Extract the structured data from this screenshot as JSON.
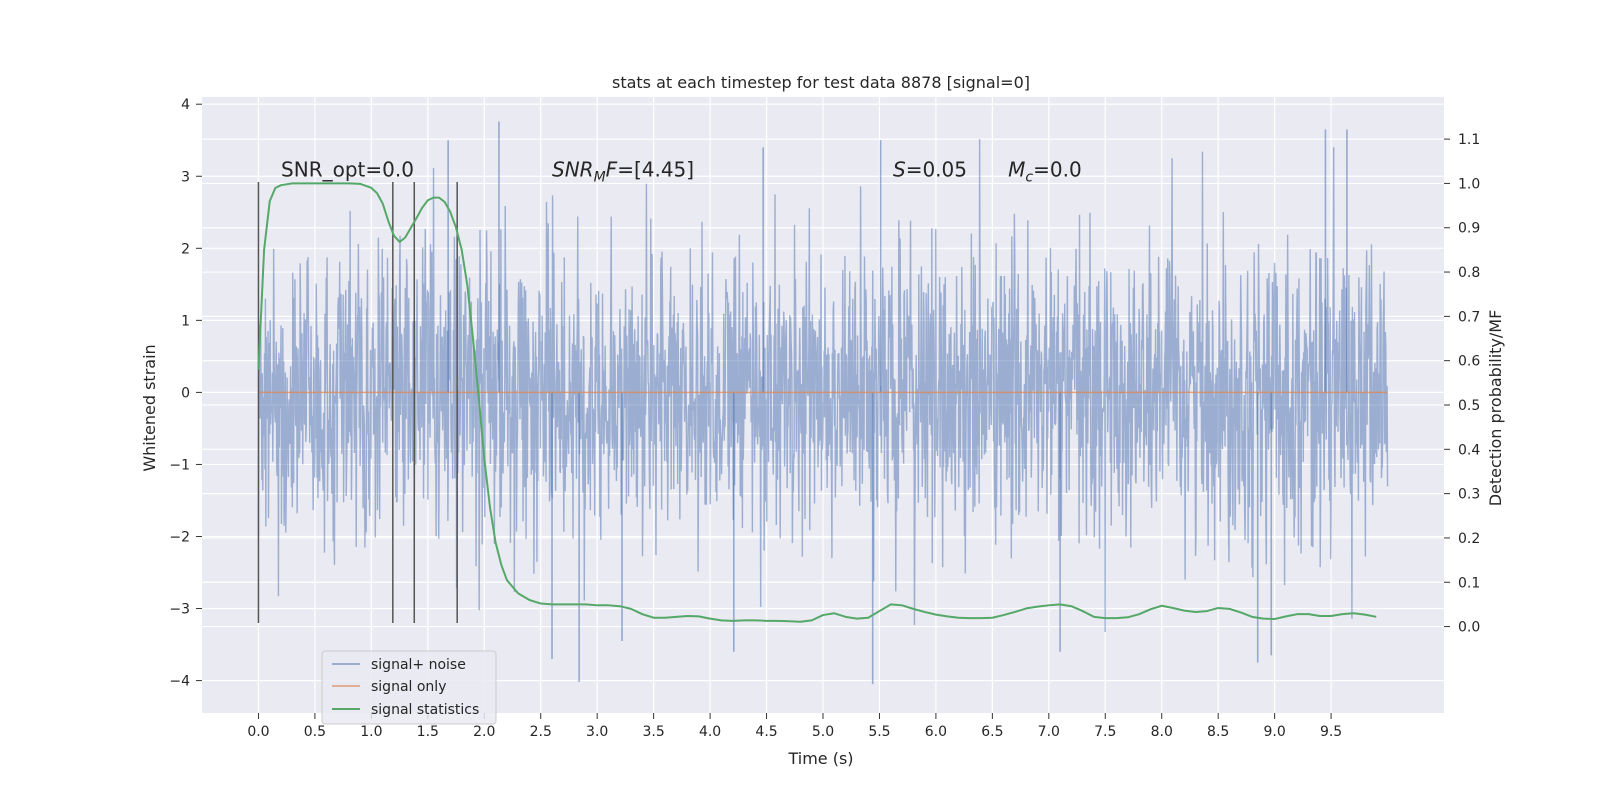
{
  "chart_data": {
    "type": "line",
    "title": "stats at each timestep for test data 8878 [signal=0]",
    "xlabel": "Time (s)",
    "ylabel": "Whitened strain",
    "y2label": "Detection probability/MF",
    "xlim": [
      -0.5,
      10.5
    ],
    "ylim": [
      -4.45,
      4.1
    ],
    "y2lim": [
      -0.195,
      1.195
    ],
    "x_ticks": [
      0.0,
      0.5,
      1.0,
      1.5,
      2.0,
      2.5,
      3.0,
      3.5,
      4.0,
      4.5,
      5.0,
      5.5,
      6.0,
      6.5,
      7.0,
      7.5,
      8.0,
      8.5,
      9.0,
      9.5
    ],
    "x_tick_labels": [
      "0.0",
      "0.5",
      "1.0",
      "1.5",
      "2.0",
      "2.5",
      "3.0",
      "3.5",
      "4.0",
      "4.5",
      "5.0",
      "5.5",
      "6.0",
      "6.5",
      "7.0",
      "7.5",
      "8.0",
      "8.5",
      "9.0",
      "9.5"
    ],
    "y_ticks": [
      -4,
      -3,
      -2,
      -1,
      0,
      1,
      2,
      3,
      4
    ],
    "y_tick_labels": [
      "−4",
      "−3",
      "−2",
      "−1",
      "0",
      "1",
      "2",
      "3",
      "4"
    ],
    "y2_ticks": [
      0.0,
      0.1,
      0.2,
      0.3,
      0.4,
      0.5,
      0.6,
      0.7,
      0.8,
      0.9,
      1.0,
      1.1
    ],
    "y2_tick_labels": [
      "0.0",
      "0.1",
      "0.2",
      "0.3",
      "0.4",
      "0.5",
      "0.6",
      "0.7",
      "0.8",
      "0.9",
      "1.0",
      "1.1"
    ],
    "grid": true,
    "legend": "lower-left",
    "noise": {
      "x_range": [
        0.0,
        10.0
      ],
      "typical_amplitude": 1.0,
      "min": -4.02,
      "max": 3.76,
      "peaks": [
        {
          "x": 2.13,
          "y": 3.76
        },
        {
          "x": 1.68,
          "y": 3.5
        },
        {
          "x": 5.51,
          "y": 3.5
        },
        {
          "x": 9.45,
          "y": 3.65
        },
        {
          "x": 9.64,
          "y": 3.65
        },
        {
          "x": 4.47,
          "y": 3.4
        },
        {
          "x": 2.84,
          "y": -4.02
        },
        {
          "x": 5.44,
          "y": -4.05
        },
        {
          "x": 2.6,
          "y": -3.7
        },
        {
          "x": 8.85,
          "y": -3.75
        },
        {
          "x": 8.97,
          "y": -3.65
        },
        {
          "x": 4.21,
          "y": -3.6
        },
        {
          "x": 3.22,
          "y": -3.45
        },
        {
          "x": 7.1,
          "y": -3.6
        }
      ]
    },
    "vlines": [
      0.0,
      1.19,
      1.38,
      1.76
    ],
    "vline_range": [
      -3.2,
      2.92
    ],
    "series": [
      {
        "name": "signal+ noise",
        "color": "#4c72b0",
        "axis": "left",
        "style": "dense-noise"
      },
      {
        "name": "signal only",
        "color": "#dd8452",
        "axis": "left",
        "x": [
          0.0,
          10.0
        ],
        "y": [
          0.0,
          0.0
        ]
      },
      {
        "name": "signal statistics",
        "color": "#55a868",
        "axis": "right",
        "x": [
          0.0,
          0.05,
          0.1,
          0.15,
          0.2,
          0.3,
          0.4,
          0.5,
          0.6,
          0.7,
          0.8,
          0.9,
          1.0,
          1.05,
          1.1,
          1.15,
          1.2,
          1.25,
          1.3,
          1.35,
          1.4,
          1.45,
          1.5,
          1.55,
          1.6,
          1.65,
          1.7,
          1.75,
          1.8,
          1.85,
          1.9,
          1.95,
          2.0,
          2.05,
          2.1,
          2.15,
          2.2,
          2.3,
          2.4,
          2.5,
          2.6,
          2.7,
          2.8,
          2.9,
          3.0,
          3.1,
          3.2,
          3.3,
          3.4,
          3.5,
          3.6,
          3.7,
          3.8,
          3.9,
          4.0,
          4.1,
          4.2,
          4.3,
          4.4,
          4.5,
          4.6,
          4.7,
          4.8,
          4.9,
          5.0,
          5.1,
          5.2,
          5.3,
          5.4,
          5.5,
          5.6,
          5.7,
          5.8,
          5.9,
          6.0,
          6.1,
          6.2,
          6.3,
          6.4,
          6.5,
          6.6,
          6.7,
          6.8,
          6.9,
          7.0,
          7.1,
          7.2,
          7.3,
          7.4,
          7.5,
          7.6,
          7.7,
          7.8,
          7.9,
          8.0,
          8.1,
          8.2,
          8.3,
          8.4,
          8.5,
          8.6,
          8.7,
          8.8,
          8.9,
          9.0,
          9.1,
          9.2,
          9.3,
          9.4,
          9.5,
          9.6,
          9.7,
          9.8,
          9.9
        ],
        "y": [
          0.58,
          0.85,
          0.96,
          0.99,
          0.996,
          1.0,
          1.0,
          1.0,
          1.0,
          1.0,
          1.0,
          0.999,
          0.99,
          0.978,
          0.955,
          0.915,
          0.882,
          0.868,
          0.878,
          0.9,
          0.922,
          0.945,
          0.962,
          0.968,
          0.968,
          0.958,
          0.935,
          0.9,
          0.85,
          0.77,
          0.65,
          0.52,
          0.38,
          0.27,
          0.19,
          0.14,
          0.105,
          0.075,
          0.06,
          0.052,
          0.05,
          0.05,
          0.05,
          0.05,
          0.048,
          0.048,
          0.046,
          0.04,
          0.028,
          0.02,
          0.02,
          0.022,
          0.024,
          0.023,
          0.018,
          0.014,
          0.013,
          0.014,
          0.014,
          0.013,
          0.013,
          0.012,
          0.011,
          0.014,
          0.026,
          0.03,
          0.022,
          0.018,
          0.02,
          0.035,
          0.05,
          0.048,
          0.04,
          0.033,
          0.027,
          0.023,
          0.02,
          0.019,
          0.019,
          0.02,
          0.026,
          0.033,
          0.041,
          0.045,
          0.048,
          0.05,
          0.046,
          0.035,
          0.022,
          0.019,
          0.019,
          0.021,
          0.028,
          0.039,
          0.047,
          0.042,
          0.036,
          0.033,
          0.035,
          0.042,
          0.04,
          0.032,
          0.022,
          0.018,
          0.017,
          0.023,
          0.028,
          0.028,
          0.024,
          0.024,
          0.028,
          0.03,
          0.027,
          0.022
        ]
      }
    ],
    "annotations": [
      {
        "text": "SNR_opt=0.0",
        "x": 0.2,
        "y": 3.0
      },
      {
        "text_parts": [
          "SNR",
          "M",
          "F=[4.45]"
        ],
        "x": 2.6,
        "y": 3.0
      },
      {
        "text_parts": [
          "S",
          "=0.05"
        ],
        "x": 5.62,
        "y": 3.0
      },
      {
        "text_parts": [
          "M",
          "c",
          "=0.0"
        ],
        "x": 6.64,
        "y": 3.0
      }
    ]
  }
}
